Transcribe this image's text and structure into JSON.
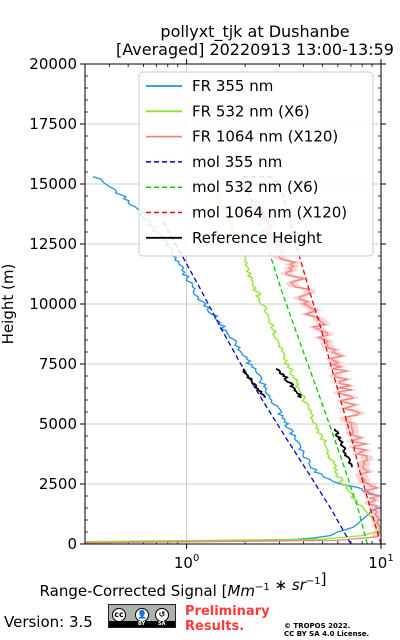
{
  "chart_data": {
    "type": "line",
    "title": [
      "pollyxt_tjk at Dushanbe",
      "[Averaged] 20220913 13:00-13:59"
    ],
    "xlabel": "Range-Corrected Signal [$Mm^{-1}*sr^{-1}$]",
    "ylabel": "Height (m)",
    "xscale": "log",
    "xlim": [
      0.3,
      10
    ],
    "ylim": [
      0,
      20000
    ],
    "xticks": [
      {
        "value": 1,
        "label": "10^0"
      },
      {
        "value": 10,
        "label": "10^1"
      }
    ],
    "yticks": [
      0,
      2500,
      5000,
      7500,
      10000,
      12500,
      15000,
      17500,
      20000
    ],
    "ytick_labels": [
      "0",
      "2500",
      "5000",
      "7500",
      "10000",
      "12500",
      "15000",
      "17500",
      "20000"
    ],
    "grid": true,
    "legend_position": "top-right",
    "series": [
      {
        "name": "FR 355 nm",
        "color": "#1f8fea",
        "style": "solid",
        "x": [
          0.3,
          3.0,
          4.5,
          5.5,
          6.0,
          7.2,
          8.0,
          8.5,
          9.0,
          10.0,
          10.0,
          7.8,
          5.6,
          4.6,
          4.0,
          3.5,
          3.0,
          2.6,
          2.2,
          1.9,
          1.6,
          1.4,
          1.2,
          1.05,
          0.95,
          0.85,
          0.75,
          0.65,
          0.58,
          0.5,
          0.42,
          0.36,
          0.33
        ],
        "y": [
          80,
          150,
          250,
          350,
          500,
          700,
          1000,
          1200,
          1400,
          1550,
          2000,
          2300,
          2600,
          3000,
          3700,
          4600,
          5500,
          6400,
          7300,
          8100,
          8800,
          9500,
          10100,
          10800,
          11500,
          12100,
          12700,
          13300,
          13800,
          14300,
          14800,
          15200,
          15300
        ]
      },
      {
        "name": "FR 532 nm (X6)",
        "color": "#8ae62c",
        "style": "solid",
        "x": [
          0.3,
          5.0,
          8.0,
          9.5,
          10.0,
          9.2,
          8.5,
          7.7,
          7.0,
          6.4,
          5.9,
          5.5,
          5.1,
          4.6,
          4.2,
          3.8,
          3.5,
          3.2,
          2.9,
          2.7,
          2.5,
          2.3,
          2.15,
          2.0,
          1.9,
          1.8,
          1.7,
          1.6,
          1.5,
          1.4,
          1.3,
          1.2,
          1.1
        ],
        "y": [
          100,
          200,
          350,
          500,
          700,
          1000,
          1300,
          1700,
          2100,
          2500,
          3000,
          3600,
          4300,
          5000,
          5700,
          6400,
          7100,
          7800,
          8500,
          9200,
          9900,
          10500,
          11100,
          11700,
          12300,
          12800,
          13300,
          13800,
          14200,
          14600,
          14900,
          15150,
          15300
        ]
      },
      {
        "name": "FR 1064 nm (X120)",
        "color": "#f08282",
        "style": "solid",
        "x": [
          0.3,
          6.0,
          9.5,
          10.0,
          9.6,
          9.3,
          9.0,
          8.8,
          8.5,
          8.2,
          7.9,
          7.6,
          7.2,
          6.8,
          6.5,
          6.1,
          5.6,
          5.1,
          4.6,
          4.2,
          3.8,
          3.5,
          3.2,
          2.9,
          2.7,
          2.5,
          2.3,
          2.15
        ],
        "y": [
          50,
          150,
          300,
          500,
          1000,
          1500,
          2000,
          2500,
          3000,
          3500,
          4000,
          4600,
          5200,
          5900,
          6600,
          7300,
          8000,
          8700,
          9400,
          10100,
          10800,
          11400,
          12000,
          12600,
          13100,
          13600,
          14000,
          14400
        ],
        "band": true
      },
      {
        "name": "mol 355 nm",
        "color": "#0000cd",
        "style": "dashed",
        "x": [
          7.0,
          5.5,
          4.2,
          3.2,
          2.45,
          1.9,
          1.5,
          1.2,
          0.95,
          0.75
        ],
        "y": [
          0,
          1500,
          3000,
          4500,
          6000,
          7500,
          9000,
          10500,
          12000,
          13500
        ]
      },
      {
        "name": "mol 532 nm (X6)",
        "color": "#00cc00",
        "style": "dashed",
        "x": [
          8.5,
          7.6,
          6.6,
          5.7,
          4.9,
          4.2,
          3.6,
          3.1,
          2.7,
          2.35,
          2.0
        ],
        "y": [
          0,
          1500,
          3000,
          4500,
          6000,
          7500,
          9000,
          10500,
          12000,
          13500,
          15000
        ]
      },
      {
        "name": "mol 1064 nm (X120)",
        "color": "#ee0000",
        "style": "dashed",
        "x": [
          10.0,
          8.8,
          7.8,
          7.0,
          6.2,
          5.5,
          4.9,
          4.3,
          3.8,
          3.4,
          3.0,
          2.7,
          2.4,
          2.15,
          1.95
        ],
        "y": [
          0,
          1500,
          3000,
          4500,
          6000,
          7500,
          9000,
          10500,
          12000,
          13500,
          15000,
          15300,
          15300,
          15300,
          15300
        ]
      },
      {
        "name": "Reference Height",
        "color": "#000000",
        "style": "solid",
        "segments": [
          {
            "x": [
              1.95,
              2.2,
              2.55
            ],
            "y": [
              7300,
              6700,
              6100
            ]
          },
          {
            "x": [
              2.95,
              3.4,
              3.9
            ],
            "y": [
              7300,
              6700,
              6100
            ]
          },
          {
            "x": [
              5.8,
              6.4,
              7.1
            ],
            "y": [
              4800,
              4000,
              3200
            ]
          }
        ]
      }
    ]
  },
  "footer": {
    "version": "Version: 3.5",
    "preliminary": [
      "Preliminary",
      "Results."
    ],
    "copyright": [
      "© TROPOS 2022.",
      "CC BY SA 4.0 License."
    ],
    "license_badge": [
      "cc",
      "BY",
      "SA"
    ]
  }
}
